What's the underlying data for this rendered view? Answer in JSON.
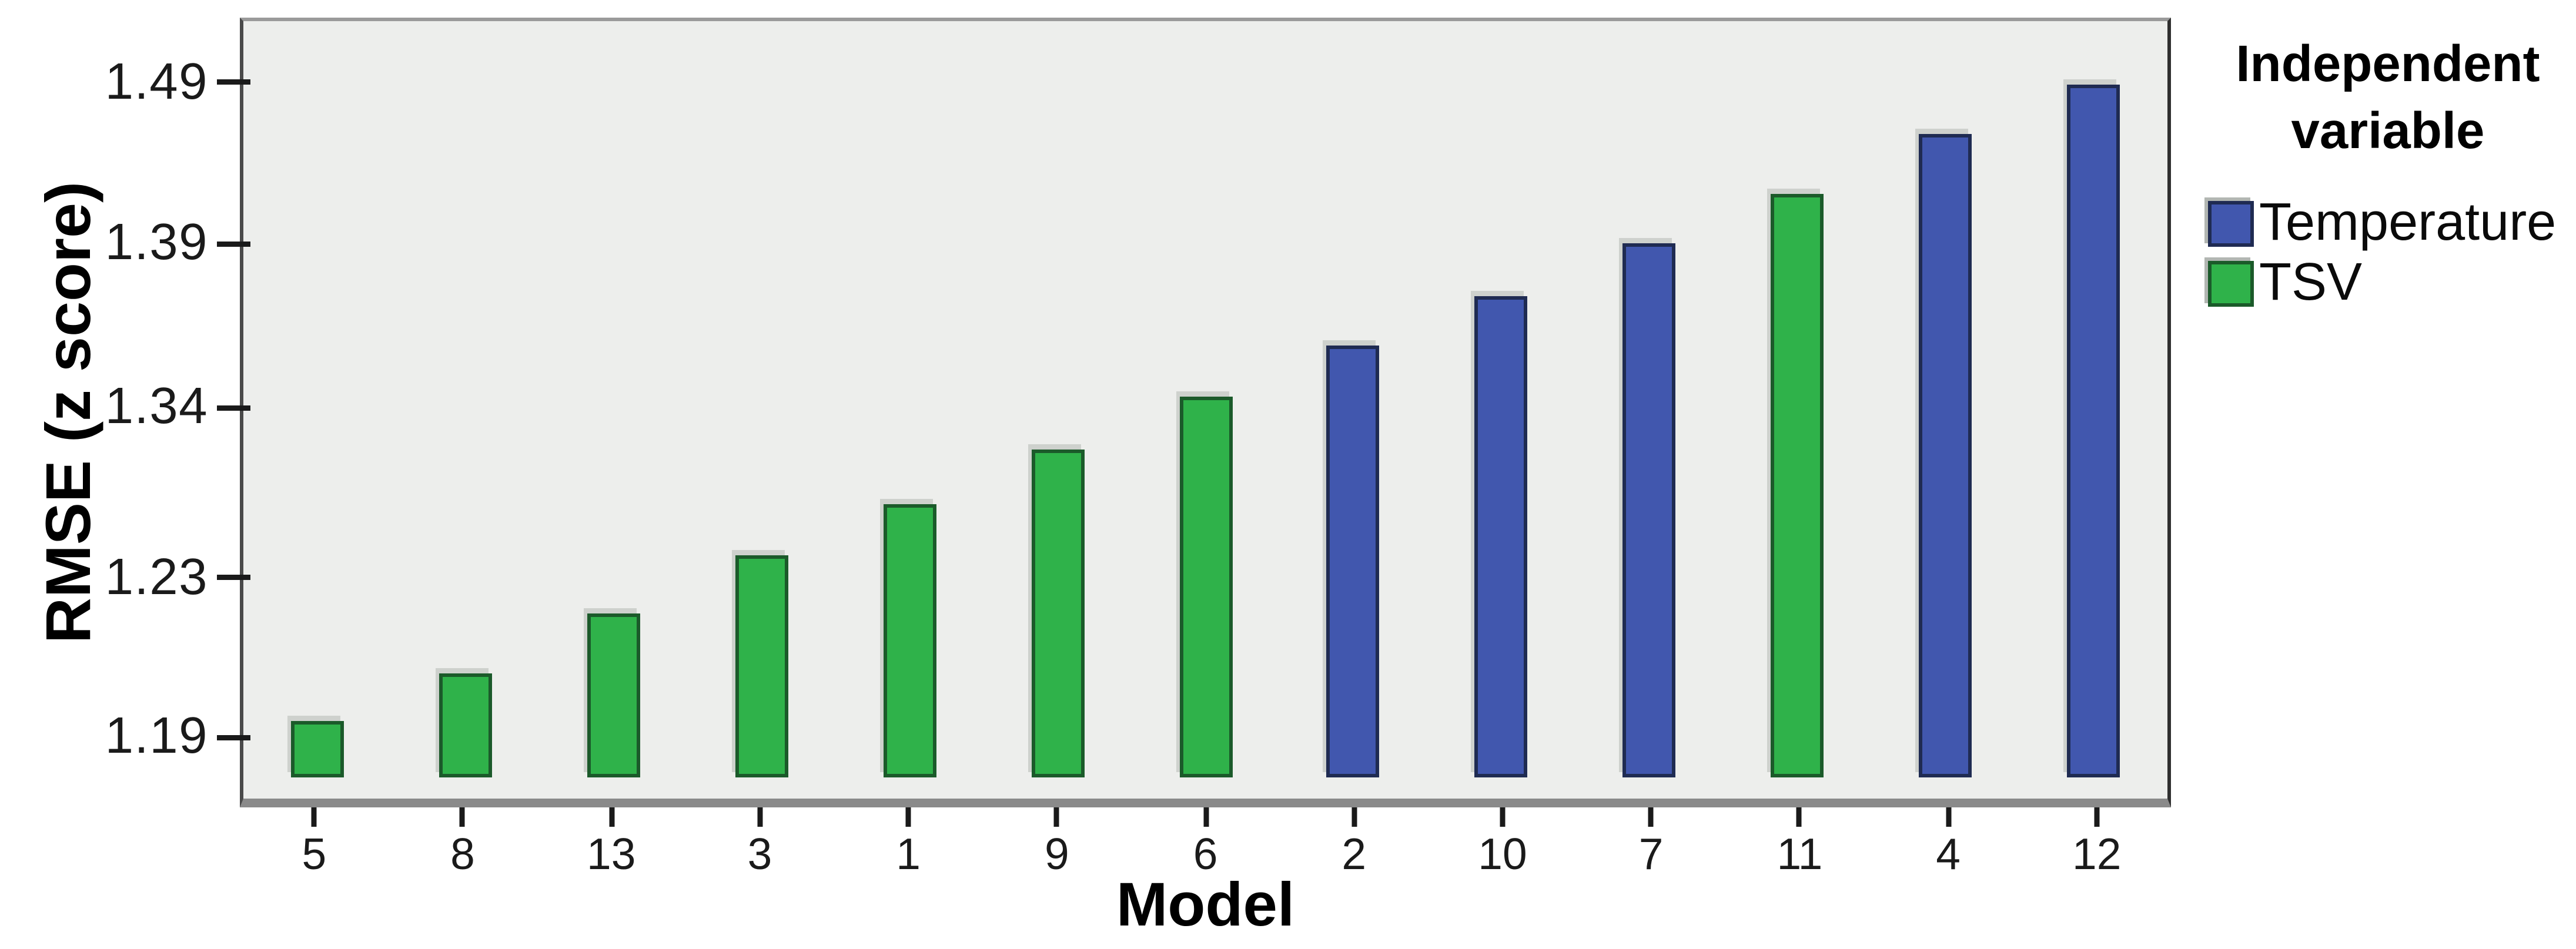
{
  "figure": {
    "background": "#ffffff",
    "plot_background": "#edeeec",
    "frame_color": "#6b6b6b"
  },
  "y_axis": {
    "title": "RMSE (z score)"
  },
  "x_axis": {
    "title": "Model"
  },
  "legend": {
    "title_line1": "Independent",
    "title_line2": "variable",
    "items": [
      {
        "label": "Temperature",
        "color": "#4157AE",
        "border": "#1F2B52"
      },
      {
        "label": "TSV",
        "color": "#2FB24A",
        "border": "#1B5A2A"
      }
    ]
  },
  "chart_data": {
    "type": "bar",
    "title": "",
    "xlabel": "Model",
    "ylabel": "RMSE (z score)",
    "legend_title": "Independent variable",
    "legend_position": "right",
    "grid": false,
    "categories": [
      "5",
      "8",
      "13",
      "3",
      "1",
      "9",
      "6",
      "2",
      "10",
      "7",
      "11",
      "4",
      "12"
    ],
    "series": [
      {
        "name": "TSV",
        "color": "#2FB24A",
        "values": [
          1.19,
          1.21,
          1.22,
          1.23,
          1.28,
          1.31,
          1.34,
          null,
          null,
          null,
          1.42,
          null,
          null
        ]
      },
      {
        "name": "Temperature",
        "color": "#4157AE",
        "values": [
          null,
          null,
          null,
          null,
          null,
          null,
          null,
          1.36,
          1.37,
          1.39,
          null,
          1.46,
          1.49
        ]
      }
    ],
    "y_ticks": [
      {
        "label": "1.49",
        "value": 1.49,
        "pct": 8.2
      },
      {
        "label": "1.39",
        "value": 1.39,
        "pct": 28.6
      },
      {
        "label": "1.34",
        "value": 1.34,
        "pct": 49.4
      },
      {
        "label": "1.23",
        "value": 1.23,
        "pct": 70.9
      },
      {
        "label": "1.19",
        "value": 1.19,
        "pct": 91.1
      }
    ],
    "baseline_pct": 97.3,
    "bars": [
      {
        "model": "5",
        "variable": "TSV",
        "value": 1.19,
        "top_pct": 90.1
      },
      {
        "model": "8",
        "variable": "TSV",
        "value": 1.21,
        "top_pct": 83.8
      },
      {
        "model": "13",
        "variable": "TSV",
        "value": 1.22,
        "top_pct": 76.3
      },
      {
        "model": "3",
        "variable": "TSV",
        "value": 1.23,
        "top_pct": 68.7
      },
      {
        "model": "1",
        "variable": "TSV",
        "value": 1.28,
        "top_pct": 62.1
      },
      {
        "model": "9",
        "variable": "TSV",
        "value": 1.31,
        "top_pct": 55.2
      },
      {
        "model": "6",
        "variable": "TSV",
        "value": 1.34,
        "top_pct": 48.3
      },
      {
        "model": "2",
        "variable": "Temperature",
        "value": 1.36,
        "top_pct": 41.7
      },
      {
        "model": "10",
        "variable": "Temperature",
        "value": 1.37,
        "top_pct": 35.3
      },
      {
        "model": "7",
        "variable": "Temperature",
        "value": 1.39,
        "top_pct": 28.6
      },
      {
        "model": "11",
        "variable": "TSV",
        "value": 1.42,
        "top_pct": 22.2
      },
      {
        "model": "4",
        "variable": "Temperature",
        "value": 1.46,
        "top_pct": 14.6
      },
      {
        "model": "12",
        "variable": "Temperature",
        "value": 1.49,
        "top_pct": 8.2
      }
    ]
  }
}
